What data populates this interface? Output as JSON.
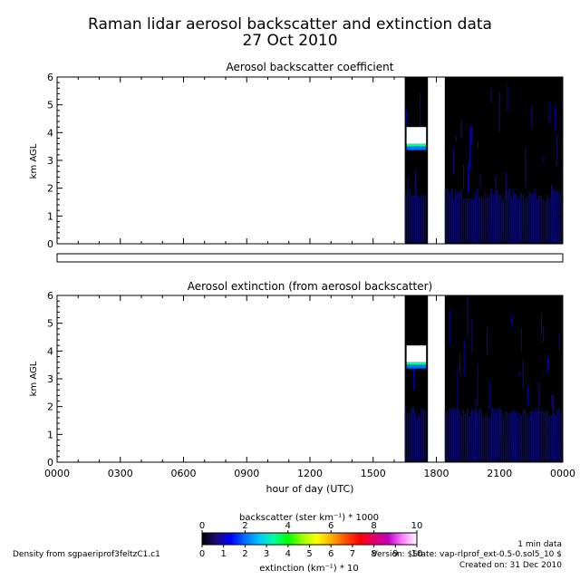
{
  "figure": {
    "title_line1": "Raman lidar aerosol backscatter and extinction data",
    "title_line2": "27 Oct 2010",
    "footer_left": "Density from sgpaeriprof3feltzC1.c1",
    "footer_right1": "1 min data",
    "footer_right2": "Version: $State: vap-rlprof_ext-0.5-0.sol5_10 $",
    "footer_right3": "Created on: 31 Dec 2010"
  },
  "chart_data": [
    {
      "type": "heatmap",
      "title": "Aerosol backscatter coefficient",
      "ylabel": "km AGL",
      "ylim": [
        0,
        6
      ],
      "xlim": [
        0,
        24
      ],
      "yticks": [
        "0",
        "1",
        "2",
        "3",
        "4",
        "5",
        "6"
      ],
      "data_segments_hours": [
        [
          16.5,
          17.6
        ],
        [
          18.4,
          24.0
        ]
      ],
      "cloud_layer_km": [
        3.6,
        4.2
      ],
      "grid": false
    },
    {
      "type": "heatmap",
      "title": "Aerosol extinction (from aerosol backscatter)",
      "ylabel": "km AGL",
      "xlabel": "hour of day (UTC)",
      "ylim": [
        0,
        6
      ],
      "xlim": [
        0,
        24
      ],
      "yticks": [
        "0",
        "1",
        "2",
        "3",
        "4",
        "5",
        "6"
      ],
      "xticks": [
        "0000",
        "0300",
        "0600",
        "0900",
        "1200",
        "1500",
        "1800",
        "2100",
        "0000"
      ],
      "data_segments_hours": [
        [
          16.5,
          17.6
        ],
        [
          18.4,
          24.0
        ]
      ],
      "cloud_layer_km": [
        3.6,
        4.2
      ],
      "grid": false
    }
  ],
  "colorbar": {
    "top_label": "backscatter (ster km⁻¹) * 1000",
    "top_ticks": [
      "0",
      "2",
      "4",
      "6",
      "8",
      "10"
    ],
    "bottom_label": "extinction (km⁻¹) * 10",
    "bottom_ticks": [
      "0",
      "1",
      "2",
      "3",
      "4",
      "5",
      "6",
      "7",
      "8",
      "9",
      "10"
    ],
    "colors": [
      "#000000",
      "#1a0a80",
      "#0000ff",
      "#0070ff",
      "#00c8ff",
      "#00ff9a",
      "#00ff00",
      "#a0ff00",
      "#ffff00",
      "#ffb000",
      "#ff5000",
      "#ff0000",
      "#e0006a",
      "#c000c0",
      "#ff80ff",
      "#ffffff"
    ]
  }
}
